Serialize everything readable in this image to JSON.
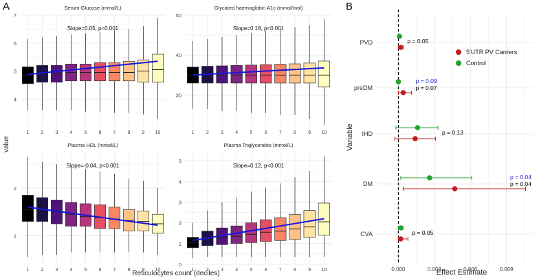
{
  "panel_labels": {
    "a": "A",
    "b": "B"
  },
  "panel_a": {
    "y_axis_label": "value",
    "x_axis_label": "Reticulocytes count (deciles)"
  },
  "chart_data": [
    {
      "type": "box",
      "title": "Serum Glucose (mmol/L)",
      "annotation": "Slope=0.05, p<0.001",
      "categories": [
        "1",
        "2",
        "3",
        "4",
        "5",
        "6",
        "7",
        "8",
        "9",
        "10"
      ],
      "ylim": [
        3,
        7
      ],
      "y_ticks": [
        4,
        5,
        6,
        7
      ],
      "boxes": [
        {
          "whisker_low": 3.6,
          "q1": 4.55,
          "median": 4.85,
          "q3": 5.15,
          "whisker_high": 6.15
        },
        {
          "whisker_low": 3.6,
          "q1": 4.6,
          "median": 4.9,
          "q3": 5.2,
          "whisker_high": 6.2
        },
        {
          "whisker_low": 3.6,
          "q1": 4.6,
          "median": 4.9,
          "q3": 5.2,
          "whisker_high": 6.25
        },
        {
          "whisker_low": 3.6,
          "q1": 4.65,
          "median": 4.95,
          "q3": 5.25,
          "whisker_high": 6.3
        },
        {
          "whisker_low": 3.55,
          "q1": 4.65,
          "median": 4.95,
          "q3": 5.25,
          "whisker_high": 6.35
        },
        {
          "whisker_low": 3.55,
          "q1": 4.65,
          "median": 4.95,
          "q3": 5.3,
          "whisker_high": 6.4
        },
        {
          "whisker_low": 3.5,
          "q1": 4.65,
          "median": 4.95,
          "q3": 5.3,
          "whisker_high": 6.45
        },
        {
          "whisker_low": 3.5,
          "q1": 4.65,
          "median": 4.95,
          "q3": 5.35,
          "whisker_high": 6.5
        },
        {
          "whisker_low": 3.45,
          "q1": 4.6,
          "median": 5.0,
          "q3": 5.4,
          "whisker_high": 6.6
        },
        {
          "whisker_low": 3.3,
          "q1": 4.6,
          "median": 5.05,
          "q3": 5.6,
          "whisker_high": 6.9
        }
      ],
      "trend": [
        4.88,
        5.35
      ]
    },
    {
      "type": "box",
      "title": "Glycated haemoglobin A1c (mmol/mol)",
      "annotation": "Slope=0.18, p<0.001",
      "categories": [
        "1",
        "2",
        "3",
        "4",
        "5",
        "6",
        "7",
        "8",
        "9",
        "10"
      ],
      "ylim": [
        22,
        50
      ],
      "y_ticks": [
        30,
        40,
        50
      ],
      "boxes": [
        {
          "whisker_low": 26.5,
          "q1": 33.0,
          "median": 35.0,
          "q3": 37.0,
          "whisker_high": 43.5
        },
        {
          "whisker_low": 26.5,
          "q1": 33.0,
          "median": 35.0,
          "q3": 37.2,
          "whisker_high": 44.0
        },
        {
          "whisker_low": 26.0,
          "q1": 33.0,
          "median": 35.0,
          "q3": 37.3,
          "whisker_high": 44.5
        },
        {
          "whisker_low": 26.0,
          "q1": 33.0,
          "median": 35.0,
          "q3": 37.4,
          "whisker_high": 45.0
        },
        {
          "whisker_low": 25.5,
          "q1": 33.0,
          "median": 35.0,
          "q3": 37.5,
          "whisker_high": 45.5
        },
        {
          "whisker_low": 25.5,
          "q1": 33.0,
          "median": 35.0,
          "q3": 37.6,
          "whisker_high": 46.0
        },
        {
          "whisker_low": 25.0,
          "q1": 33.0,
          "median": 35.0,
          "q3": 37.7,
          "whisker_high": 46.5
        },
        {
          "whisker_low": 25.0,
          "q1": 33.0,
          "median": 35.0,
          "q3": 37.8,
          "whisker_high": 47.0
        },
        {
          "whisker_low": 24.0,
          "q1": 33.0,
          "median": 35.0,
          "q3": 38.0,
          "whisker_high": 47.5
        },
        {
          "whisker_low": 22.5,
          "q1": 32.0,
          "median": 35.0,
          "q3": 38.5,
          "whisker_high": 49.0
        }
      ],
      "trend": [
        35.0,
        36.8
      ]
    },
    {
      "type": "box",
      "title": "Plasma HDL (mmol/L)",
      "annotation": "Slope=-0.04, p<0.001",
      "categories": [
        "1",
        "2",
        "3",
        "4",
        "5",
        "6",
        "7",
        "8",
        "9",
        "10"
      ],
      "ylim": [
        0.4,
        2.75
      ],
      "y_ticks": [
        1,
        2
      ],
      "boxes": [
        {
          "whisker_low": 0.55,
          "q1": 1.3,
          "median": 1.55,
          "q3": 1.85,
          "whisker_high": 2.65
        },
        {
          "whisker_low": 0.6,
          "q1": 1.3,
          "median": 1.55,
          "q3": 1.8,
          "whisker_high": 2.55
        },
        {
          "whisker_low": 0.6,
          "q1": 1.25,
          "median": 1.5,
          "q3": 1.75,
          "whisker_high": 2.5
        },
        {
          "whisker_low": 0.65,
          "q1": 1.2,
          "median": 1.45,
          "q3": 1.7,
          "whisker_high": 2.45
        },
        {
          "whisker_low": 0.65,
          "q1": 1.2,
          "median": 1.4,
          "q3": 1.67,
          "whisker_high": 2.4
        },
        {
          "whisker_low": 0.65,
          "q1": 1.15,
          "median": 1.38,
          "q3": 1.65,
          "whisker_high": 2.35
        },
        {
          "whisker_low": 0.65,
          "q1": 1.15,
          "median": 1.35,
          "q3": 1.6,
          "whisker_high": 2.3
        },
        {
          "whisker_low": 0.65,
          "q1": 1.1,
          "median": 1.32,
          "q3": 1.55,
          "whisker_high": 2.2
        },
        {
          "whisker_low": 0.65,
          "q1": 1.1,
          "median": 1.3,
          "q3": 1.52,
          "whisker_high": 2.15
        },
        {
          "whisker_low": 0.6,
          "q1": 1.05,
          "median": 1.25,
          "q3": 1.45,
          "whisker_high": 2.0
        }
      ],
      "trend": [
        1.6,
        1.22
      ]
    },
    {
      "type": "box",
      "title": "Plasma Triglycerides (mmol/L)",
      "annotation": "Slope=0.12, p<0.001",
      "categories": [
        "1",
        "2",
        "3",
        "4",
        "5",
        "6",
        "7",
        "8",
        "9",
        "10"
      ],
      "ylim": [
        0,
        5.4
      ],
      "y_ticks": [
        0,
        1,
        2,
        3,
        4,
        5
      ],
      "boxes": [
        {
          "whisker_low": 0.3,
          "q1": 0.8,
          "median": 1.05,
          "q3": 1.3,
          "whisker_high": 2.0
        },
        {
          "whisker_low": 0.35,
          "q1": 0.9,
          "median": 1.2,
          "q3": 1.6,
          "whisker_high": 2.6
        },
        {
          "whisker_low": 0.35,
          "q1": 0.95,
          "median": 1.3,
          "q3": 1.75,
          "whisker_high": 3.0
        },
        {
          "whisker_low": 0.35,
          "q1": 1.0,
          "median": 1.35,
          "q3": 1.85,
          "whisker_high": 3.2
        },
        {
          "whisker_low": 0.35,
          "q1": 1.05,
          "median": 1.45,
          "q3": 2.0,
          "whisker_high": 3.5
        },
        {
          "whisker_low": 0.35,
          "q1": 1.1,
          "median": 1.55,
          "q3": 2.15,
          "whisker_high": 3.7
        },
        {
          "whisker_low": 0.35,
          "q1": 1.15,
          "median": 1.6,
          "q3": 2.25,
          "whisker_high": 3.9
        },
        {
          "whisker_low": 0.35,
          "q1": 1.2,
          "median": 1.7,
          "q3": 2.4,
          "whisker_high": 4.2
        },
        {
          "whisker_low": 0.35,
          "q1": 1.3,
          "median": 1.8,
          "q3": 2.6,
          "whisker_high": 4.5
        },
        {
          "whisker_low": 0.35,
          "q1": 1.4,
          "median": 2.05,
          "q3": 2.95,
          "whisker_high": 5.2
        }
      ],
      "trend": [
        1.15,
        2.2
      ]
    },
    {
      "type": "forest",
      "xlabel": "Effect Estimate",
      "ylabel": "Variable",
      "xlim": [
        -0.0018,
        0.0112
      ],
      "x_ticks": [
        0.0,
        0.003,
        0.006,
        0.009
      ],
      "x_tick_labels": [
        "0.000",
        "0.003",
        "0.006",
        "0.009"
      ],
      "reference_line": 0,
      "legend_position": "top-right",
      "series": [
        {
          "name": "5'UTR PV Carriers",
          "color": "#c01f1f"
        },
        {
          "name": "Control",
          "color": "#22a32e"
        }
      ],
      "variables": [
        {
          "name": "PVD",
          "carriers": {
            "estimate": 0.0002,
            "low": 0.0,
            "high": 0.0004
          },
          "control": {
            "estimate": 0.0001,
            "low": 0.0,
            "high": 0.0002
          },
          "labels": [
            {
              "text": "p = 0.05",
              "color": "#000000"
            }
          ]
        },
        {
          "name": "preDM",
          "carriers": {
            "estimate": 0.0004,
            "low": 0.0,
            "high": 0.0011
          },
          "control": {
            "estimate": 0.0,
            "low": 0.0,
            "high": 0.0001
          },
          "labels": [
            {
              "text": "p = 0.09",
              "color": "#2222cc"
            },
            {
              "text": "p = 0.07",
              "color": "#000000"
            }
          ]
        },
        {
          "name": "IHD",
          "carriers": {
            "estimate": 0.0014,
            "low": -0.0003,
            "high": 0.0031
          },
          "control": {
            "estimate": 0.0016,
            "low": -0.0002,
            "high": 0.0033
          },
          "labels": [
            {
              "text": "p = 0.13",
              "color": "#000000"
            }
          ]
        },
        {
          "name": "DM",
          "carriers": {
            "estimate": 0.0047,
            "low": 0.0004,
            "high": 0.0106
          },
          "control": {
            "estimate": 0.0026,
            "low": 0.0002,
            "high": 0.0061
          },
          "labels": [
            {
              "text": "p = 0.04",
              "color": "#2222cc"
            },
            {
              "text": "p = 0.04",
              "color": "#000000"
            }
          ]
        },
        {
          "name": "CVA",
          "carriers": {
            "estimate": 0.0002,
            "low": 0.0,
            "high": 0.0008
          },
          "control": {
            "estimate": 0.0002,
            "low": 0.0,
            "high": 0.0004
          },
          "labels": [
            {
              "text": "p = 0.05",
              "color": "#000000"
            }
          ]
        }
      ]
    }
  ]
}
